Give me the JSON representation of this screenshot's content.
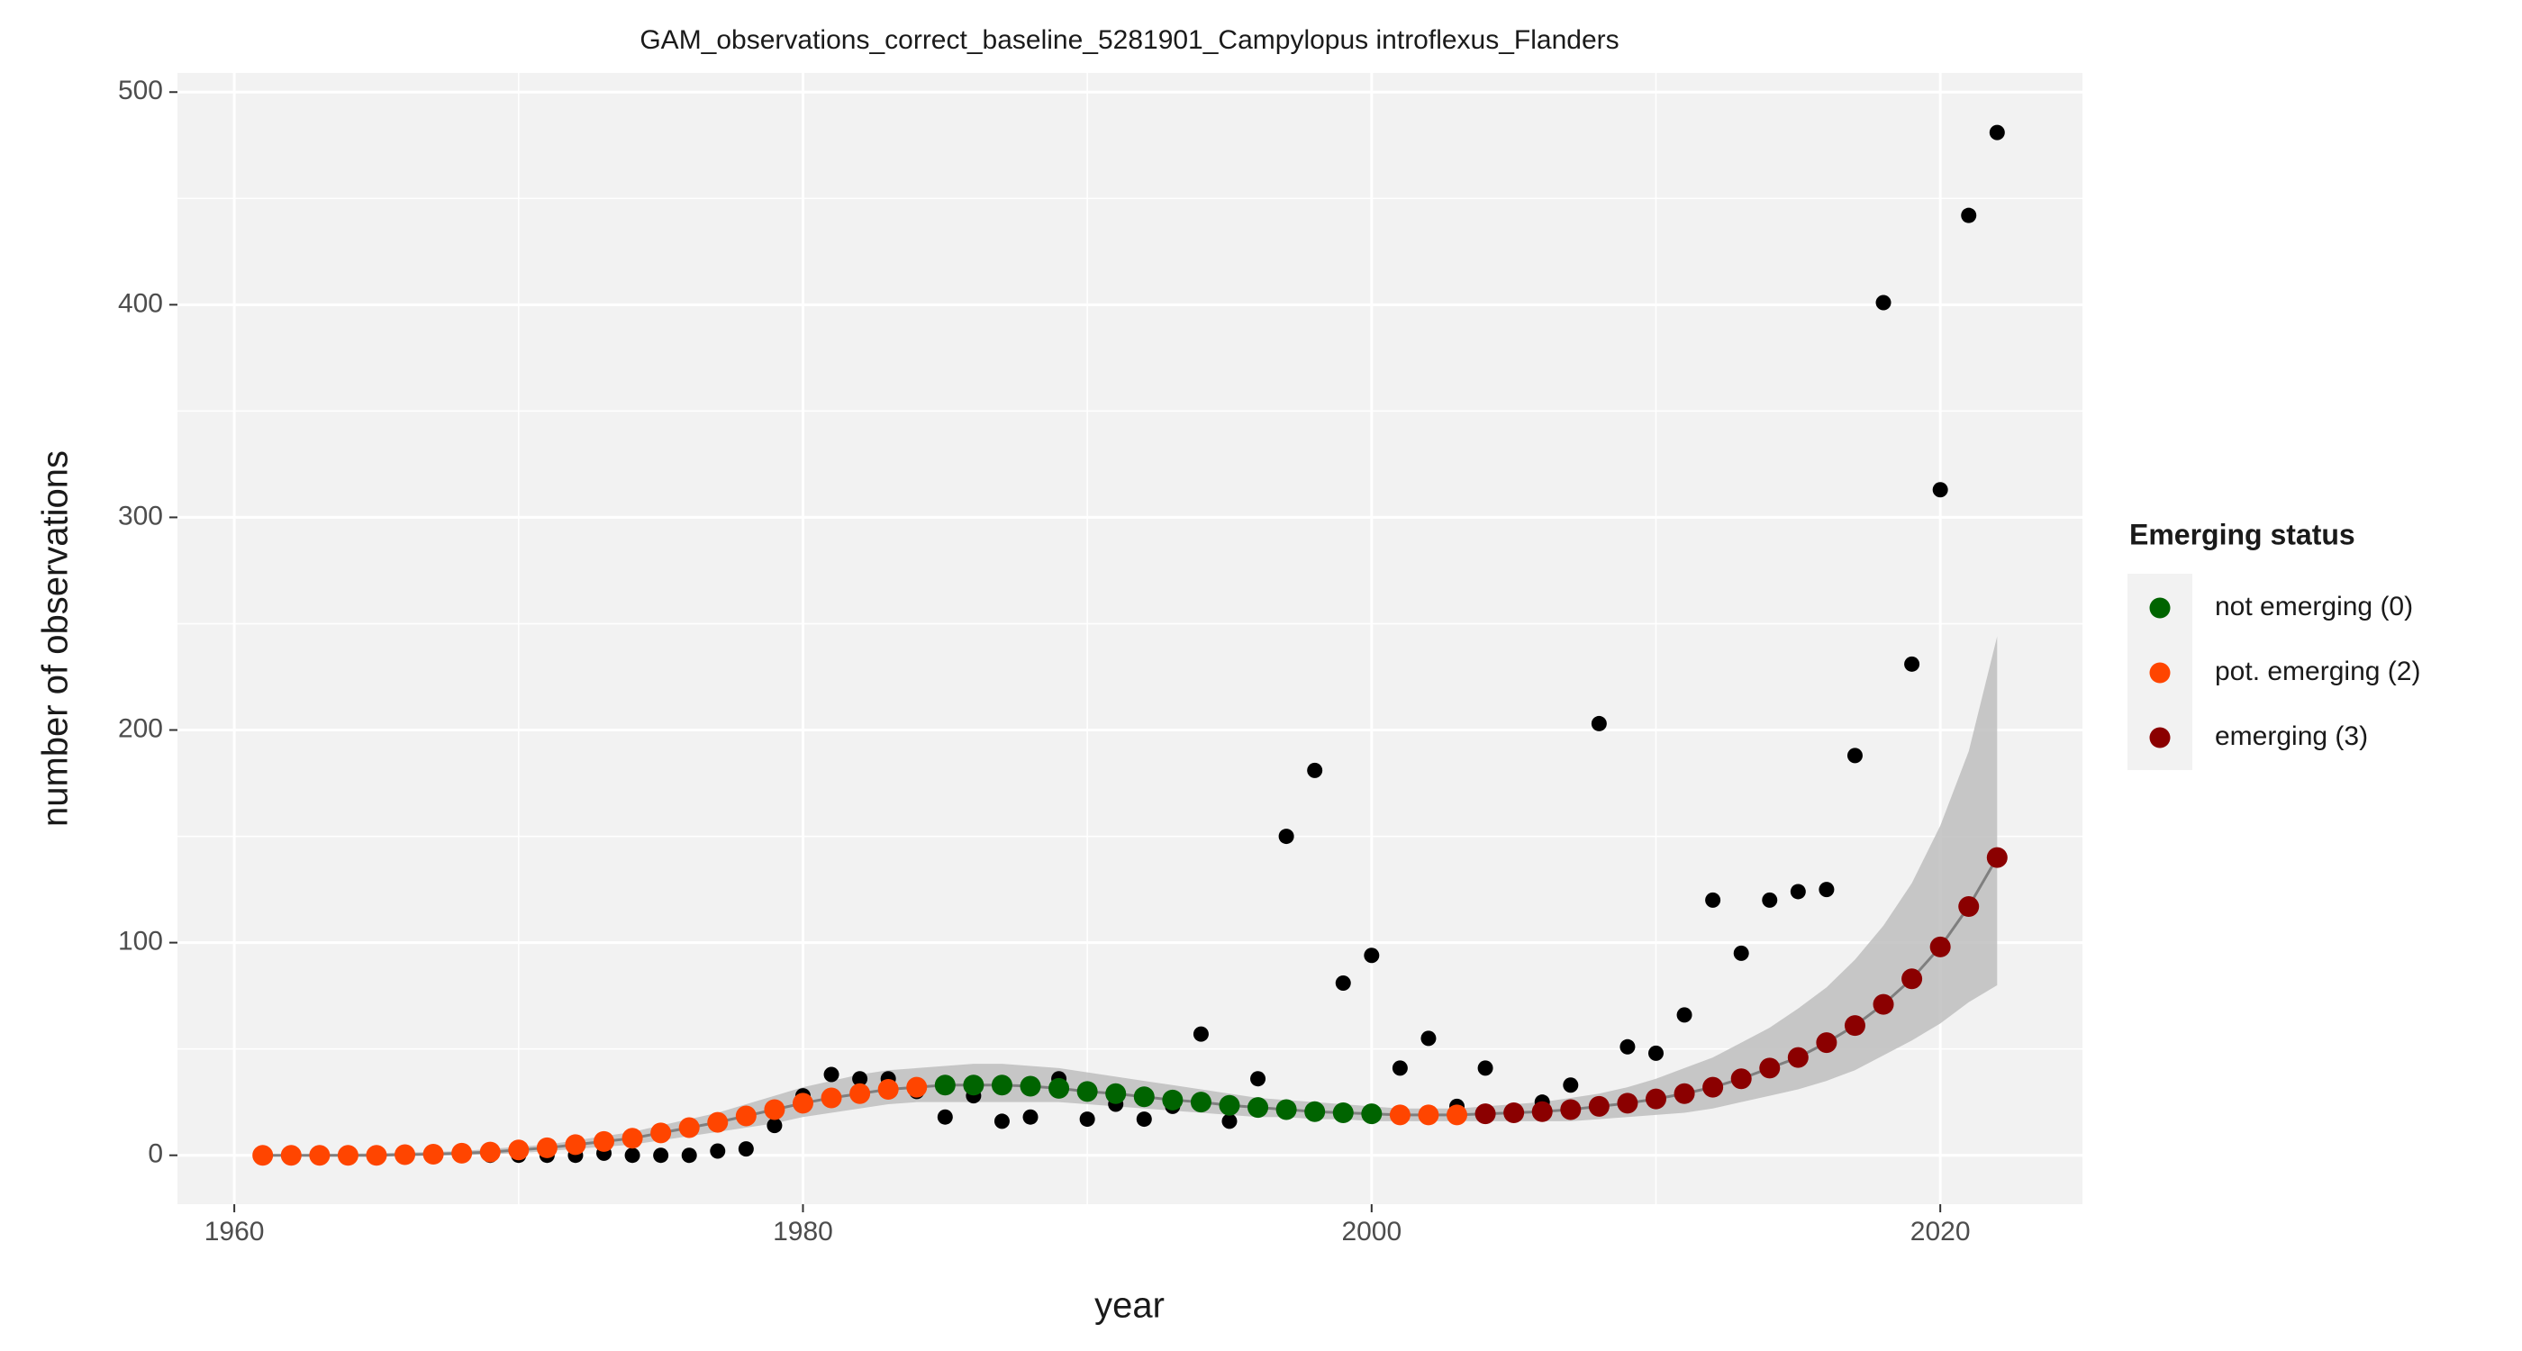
{
  "chart_data": {
    "type": "scatter",
    "title": "GAM_observations_correct_baseline_5281901_Campylopus introflexus_Flanders",
    "x_label": "year",
    "y_label": "number of observations",
    "legend_title": "Emerging status",
    "legend": [
      {
        "label": "not emerging (0)",
        "code": 0,
        "color": "#006400"
      },
      {
        "label": "pot. emerging (2)",
        "code": 2,
        "color": "#ff4500"
      },
      {
        "label": "emerging (3)",
        "code": 3,
        "color": "#8b0000"
      }
    ],
    "observed_color": "#000000",
    "band_color": "#bebebe",
    "line_color": "#7f7f7f",
    "grid": true,
    "xlim": [
      1958,
      2025
    ],
    "ylim": [
      -23,
      509
    ],
    "xticks": [
      1960,
      1980,
      2000,
      2020
    ],
    "yticks": [
      0,
      100,
      200,
      300,
      400,
      500
    ],
    "x": [
      1961,
      1962,
      1963,
      1964,
      1965,
      1966,
      1967,
      1968,
      1969,
      1970,
      1971,
      1972,
      1973,
      1974,
      1975,
      1976,
      1977,
      1978,
      1979,
      1980,
      1981,
      1982,
      1983,
      1984,
      1985,
      1986,
      1987,
      1988,
      1989,
      1990,
      1991,
      1992,
      1993,
      1994,
      1995,
      1996,
      1997,
      1998,
      1999,
      2000,
      2001,
      2002,
      2003,
      2004,
      2005,
      2006,
      2007,
      2008,
      2009,
      2010,
      2011,
      2012,
      2013,
      2014,
      2015,
      2016,
      2017,
      2018,
      2019,
      2020,
      2021,
      2022
    ],
    "observed": [
      0,
      0,
      0,
      0,
      0,
      0,
      0,
      0,
      0,
      0,
      0,
      0,
      1,
      0,
      0,
      0,
      2,
      3,
      14,
      28,
      38,
      36,
      36,
      30,
      18,
      28,
      16,
      18,
      36,
      17,
      24,
      17,
      23,
      57,
      16,
      36,
      150,
      181,
      81,
      94,
      41,
      55,
      23,
      41,
      20,
      25,
      33,
      203,
      51,
      48,
      66,
      120,
      95,
      120,
      124,
      125,
      188,
      401,
      231,
      313,
      442,
      481
    ],
    "fitted": [
      0,
      0,
      0,
      0,
      0,
      0.3,
      0.5,
      1,
      1.5,
      2.5,
      3.5,
      5,
      6.5,
      8,
      10.5,
      13,
      15.5,
      18.5,
      21.5,
      24.5,
      27,
      29,
      31,
      32,
      33,
      33,
      33,
      32.5,
      31.5,
      30,
      29,
      27.5,
      26,
      25,
      23.5,
      22.5,
      21.5,
      20.5,
      20,
      19.5,
      19,
      19,
      19,
      19.5,
      20,
      20.5,
      21.5,
      23,
      24.5,
      26.5,
      29,
      32,
      36,
      41,
      46,
      53,
      61,
      71,
      83,
      98,
      117,
      140
    ],
    "status": [
      2,
      2,
      2,
      2,
      2,
      2,
      2,
      2,
      2,
      2,
      2,
      2,
      2,
      2,
      2,
      2,
      2,
      2,
      2,
      2,
      2,
      2,
      2,
      2,
      0,
      0,
      0,
      0,
      0,
      0,
      0,
      0,
      0,
      0,
      0,
      0,
      0,
      0,
      0,
      0,
      2,
      2,
      2,
      3,
      3,
      3,
      3,
      3,
      3,
      3,
      3,
      3,
      3,
      3,
      3,
      3,
      3,
      3,
      3,
      3,
      3,
      3
    ],
    "ci_lower": [
      0,
      0,
      0,
      0,
      0,
      0,
      0,
      0,
      0.5,
      1,
      2,
      3,
      4,
      5,
      7,
      9,
      11,
      13,
      15,
      18,
      20,
      22,
      24,
      25,
      25,
      25,
      25,
      25,
      25,
      24,
      23,
      22,
      21,
      20,
      19,
      18,
      18,
      17,
      17,
      16,
      16,
      16,
      16,
      16,
      16,
      16,
      16,
      17,
      18,
      19,
      20,
      22,
      25,
      28,
      31,
      35,
      40,
      47,
      54,
      62,
      72,
      80
    ],
    "ci_upper": [
      0.5,
      0.5,
      0.5,
      0.7,
      1,
      1.3,
      1.6,
      2,
      3,
      4,
      5,
      7,
      9,
      11,
      14,
      17,
      20,
      24,
      28,
      32,
      35,
      38,
      40,
      41,
      42,
      43,
      43,
      42,
      41,
      39,
      37,
      35,
      33,
      31,
      29,
      27,
      26,
      25,
      24,
      23,
      22,
      22,
      22,
      23,
      24,
      25,
      27,
      29,
      32,
      36,
      41,
      46,
      53,
      60,
      69,
      79,
      92,
      108,
      128,
      155,
      190,
      244
    ]
  }
}
